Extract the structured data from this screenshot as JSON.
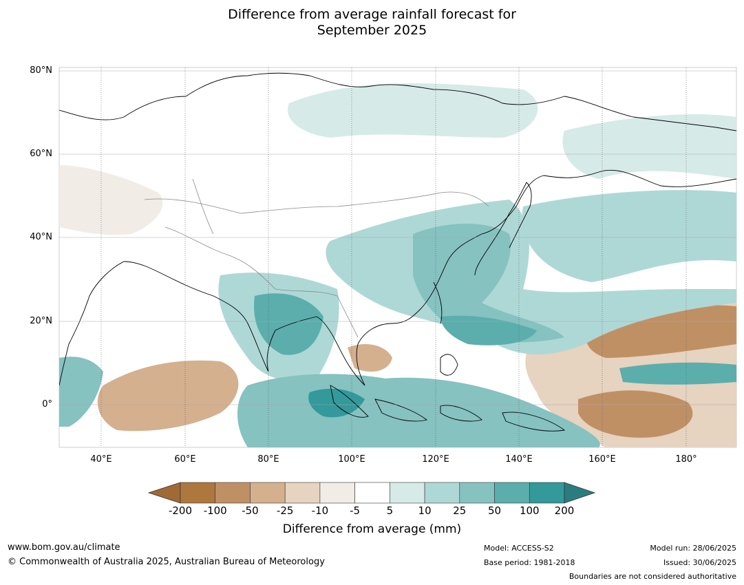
{
  "title_line1": "Difference from average rainfall forecast for",
  "title_line2": "September 2025",
  "lat_labels": [
    "80°N",
    "60°N",
    "40°N",
    "20°N",
    "0°"
  ],
  "lon_labels": [
    "40°E",
    "60°E",
    "80°E",
    "100°E",
    "120°E",
    "140°E",
    "160°E",
    "180°"
  ],
  "legend": {
    "ticks": [
      "-200",
      "-100",
      "-50",
      "-25",
      "-10",
      "-5",
      "5",
      "10",
      "25",
      "50",
      "100",
      "200"
    ],
    "colors": [
      "#a06a35",
      "#ad773e",
      "#c09065",
      "#d4b08e",
      "#e6d3c0",
      "#f1ece6",
      "#ffffff",
      "#d6eae8",
      "#aed8d6",
      "#85c2c0",
      "#5baeac",
      "#33999a",
      "#2a7d7e"
    ],
    "label": "Difference from average (mm)"
  },
  "footer": {
    "url": "www.bom.gov.au/climate",
    "copyright": "© Commonwealth of Australia 2025, Australian Bureau of Meteorology",
    "model": "Model: ACCESS-S2",
    "base_period": "Base period: 1981-2018",
    "model_run": "Model run: 28/06/2025",
    "issued": "Issued: 30/06/2025",
    "disclaimer": "Boundaries are not considered authoritative"
  }
}
